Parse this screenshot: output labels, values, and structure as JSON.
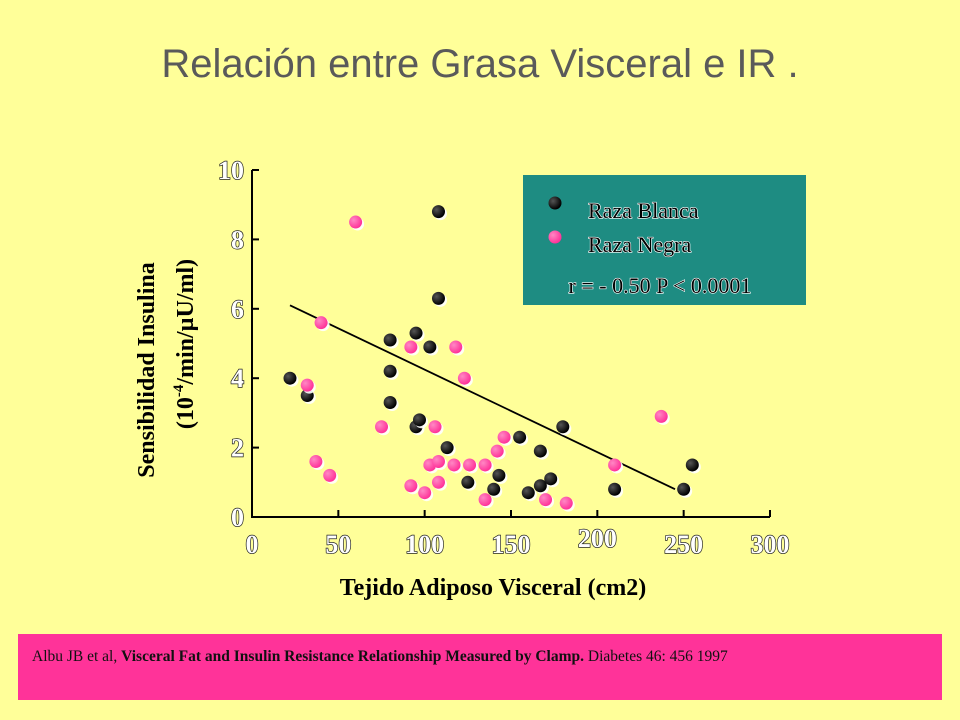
{
  "slide": {
    "title": "Relación entre Grasa Visceral e IR ."
  },
  "citation": {
    "authors": "Albu JB et al,",
    "article": "Visceral Fat and Insulin Resistance Relationship Measured by Clamp.",
    "journal": "Diabetes 46: 456 1997"
  },
  "colors": {
    "background": "#FFFF99",
    "legend_box": "#1E8C82",
    "raza_blanca": "#000000",
    "raza_negra": "#FF3399",
    "citation_bar": "#FF3399"
  },
  "chart_data": {
    "type": "scatter",
    "title": "",
    "xlabel": "Tejido Adiposo Visceral (cm2)",
    "ylabel_line1": "Sensibilidad Insulina",
    "ylabel_line2_prefix": "(10",
    "ylabel_line2_sup": "-4",
    "ylabel_line2_suffix": "/min/µU/ml)",
    "xlim": [
      0,
      300
    ],
    "ylim": [
      0,
      10
    ],
    "x_ticks": [
      "0",
      "50",
      "100",
      "150",
      "200",
      "250",
      "300"
    ],
    "y_ticks": [
      "0",
      "2",
      "4",
      "6",
      "8",
      "10"
    ],
    "grid": false,
    "legend_position": "top-right",
    "annotation": "r = - 0.50 P < 0.0001",
    "series": [
      {
        "name": "Raza Blanca",
        "color": "#000000",
        "points": [
          [
            22,
            4.0
          ],
          [
            32,
            3.5
          ],
          [
            80,
            5.1
          ],
          [
            95,
            5.3
          ],
          [
            80,
            4.2
          ],
          [
            103,
            4.9
          ],
          [
            108,
            8.8
          ],
          [
            108,
            6.3
          ],
          [
            80,
            3.3
          ],
          [
            95,
            2.6
          ],
          [
            97,
            2.8
          ],
          [
            113,
            2.0
          ],
          [
            125,
            1.0
          ],
          [
            140,
            0.8
          ],
          [
            143,
            1.2
          ],
          [
            155,
            2.3
          ],
          [
            160,
            0.7
          ],
          [
            167,
            0.9
          ],
          [
            167,
            1.9
          ],
          [
            173,
            1.1
          ],
          [
            180,
            2.6
          ],
          [
            210,
            0.8
          ],
          [
            250,
            0.8
          ],
          [
            255,
            1.5
          ]
        ]
      },
      {
        "name": "Raza Negra",
        "color": "#FF3399",
        "points": [
          [
            60,
            8.5
          ],
          [
            40,
            5.6
          ],
          [
            32,
            3.8
          ],
          [
            37,
            1.6
          ],
          [
            45,
            1.2
          ],
          [
            75,
            2.6
          ],
          [
            92,
            4.9
          ],
          [
            118,
            4.9
          ],
          [
            123,
            4.0
          ],
          [
            106,
            2.6
          ],
          [
            100,
            0.7
          ],
          [
            92,
            0.9
          ],
          [
            103,
            1.5
          ],
          [
            108,
            1.6
          ],
          [
            108,
            1.0
          ],
          [
            117,
            1.5
          ],
          [
            126,
            1.5
          ],
          [
            135,
            1.5
          ],
          [
            135,
            0.5
          ],
          [
            142,
            1.9
          ],
          [
            146,
            2.3
          ],
          [
            170,
            0.5
          ],
          [
            182,
            0.4
          ],
          [
            210,
            1.5
          ],
          [
            237,
            2.9
          ]
        ]
      }
    ],
    "regression_line": [
      [
        22,
        6.1
      ],
      [
        245,
        0.8
      ]
    ]
  }
}
